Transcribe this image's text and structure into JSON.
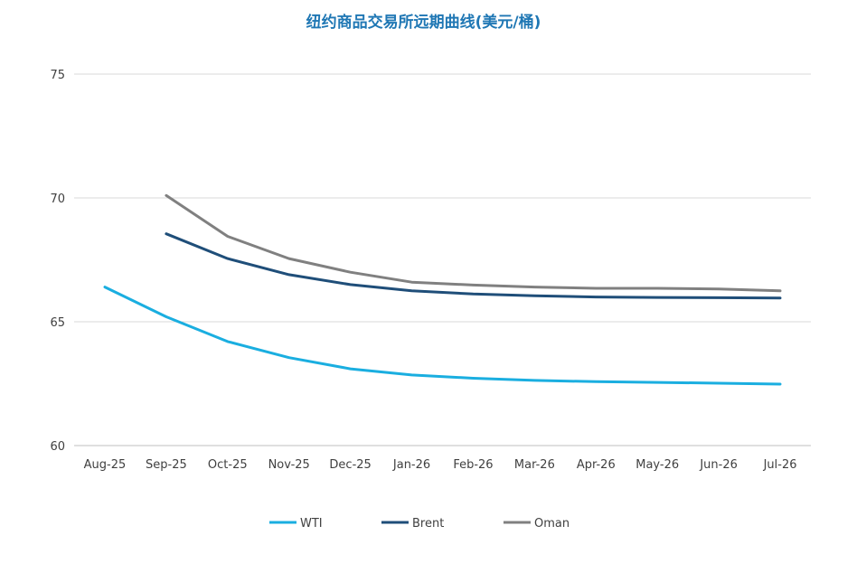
{
  "chart_data": {
    "type": "line",
    "title": "纽约商品交易所远期曲线(美元/桶)",
    "categories": [
      "Aug-25",
      "Sep-25",
      "Oct-25",
      "Nov-25",
      "Dec-25",
      "Jan-26",
      "Feb-26",
      "Mar-26",
      "Apr-26",
      "May-26",
      "Jun-26",
      "Jul-26"
    ],
    "y_ticks": [
      60,
      65,
      70,
      75
    ],
    "ylim": [
      60,
      75
    ],
    "grid": true,
    "legend_position": "bottom",
    "series": [
      {
        "name": "WTI",
        "color": "#1aaee0",
        "values": [
          66.4,
          65.2,
          64.2,
          63.55,
          63.1,
          62.85,
          62.72,
          62.63,
          62.58,
          62.55,
          62.52,
          62.48
        ]
      },
      {
        "name": "Brent",
        "color": "#1f4e79",
        "values": [
          null,
          68.55,
          67.55,
          66.9,
          66.5,
          66.25,
          66.12,
          66.05,
          66.0,
          65.98,
          65.97,
          65.96
        ]
      },
      {
        "name": "Oman",
        "color": "#808080",
        "values": [
          null,
          70.1,
          68.45,
          67.55,
          67.0,
          66.6,
          66.48,
          66.4,
          66.35,
          66.35,
          66.32,
          66.25
        ]
      }
    ]
  }
}
